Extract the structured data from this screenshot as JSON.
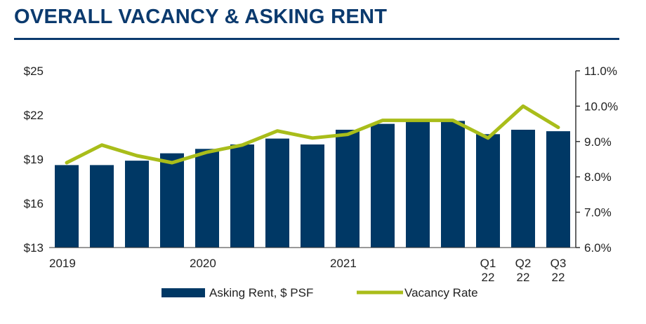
{
  "header": {
    "title": "OVERALL VACANCY & ASKING RENT"
  },
  "colors": {
    "title": "#0b3a6e",
    "bar": "#003865",
    "line": "#a9bd1a",
    "axis": "#333333"
  },
  "chart_data": {
    "type": "bar",
    "title": "OVERALL VACANCY & ASKING RENT",
    "x_tick_labels": [
      {
        "index": 0,
        "lines": [
          "2019"
        ]
      },
      {
        "index": 4,
        "lines": [
          "2020"
        ]
      },
      {
        "index": 8,
        "lines": [
          "2021"
        ]
      },
      {
        "index": 12,
        "lines": [
          "Q1",
          "22"
        ]
      },
      {
        "index": 13,
        "lines": [
          "Q2",
          "22"
        ]
      },
      {
        "index": 14,
        "lines": [
          "Q3",
          "22"
        ]
      }
    ],
    "y_left": {
      "min": 13,
      "max": 25,
      "ticks": [
        13,
        16,
        19,
        22,
        25
      ],
      "tick_labels": [
        "$13",
        "$16",
        "$19",
        "$22",
        "$25"
      ]
    },
    "y_right": {
      "min": 6.0,
      "max": 11.0,
      "ticks": [
        6,
        7,
        8,
        9,
        10,
        11
      ],
      "tick_labels": [
        "6.0%",
        "7.0%",
        "8.0%",
        "9.0%",
        "10.0%",
        "11.0%"
      ]
    },
    "series": [
      {
        "name": "Asking Rent, $ PSF",
        "type": "bar",
        "axis": "left",
        "values": [
          18.6,
          18.6,
          18.9,
          19.4,
          19.7,
          20.0,
          20.4,
          20.0,
          21.0,
          21.4,
          21.6,
          21.6,
          20.7,
          21.0,
          20.9
        ]
      },
      {
        "name": "Vacancy Rate",
        "type": "line",
        "axis": "right",
        "values": [
          8.4,
          8.9,
          8.6,
          8.4,
          8.7,
          8.9,
          9.3,
          9.1,
          9.2,
          9.6,
          9.6,
          9.6,
          9.1,
          10.0,
          9.4
        ]
      }
    ],
    "legend": {
      "position": "bottom"
    },
    "grid": false
  }
}
